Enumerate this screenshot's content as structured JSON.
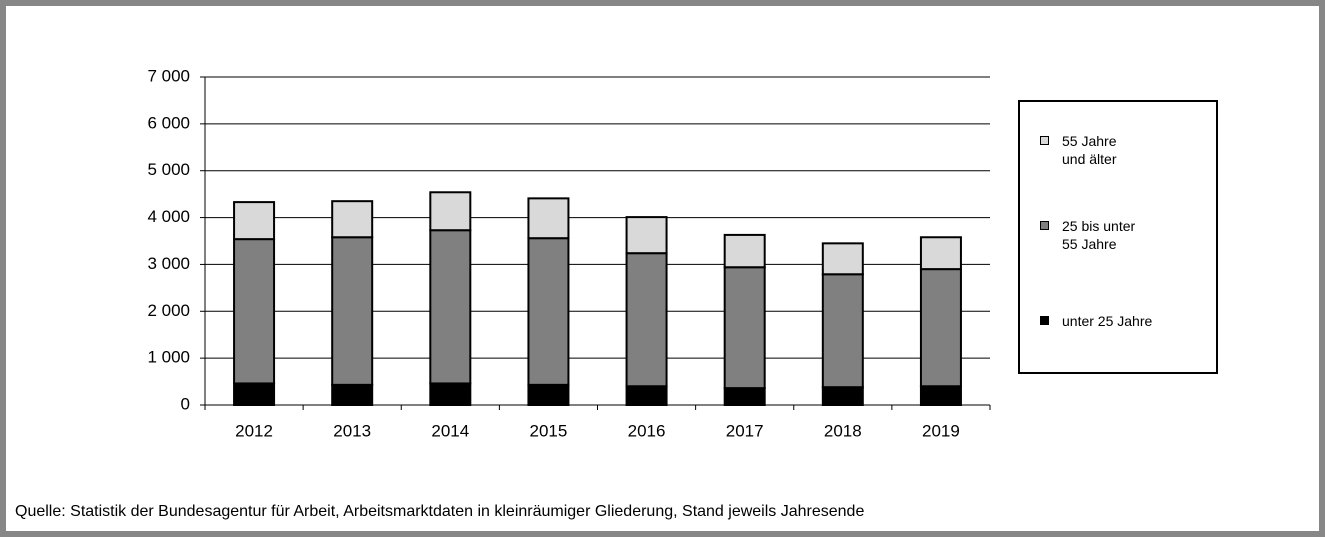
{
  "chart_data": {
    "type": "stacked_bar",
    "categories": [
      "2012",
      "2013",
      "2014",
      "2015",
      "2016",
      "2017",
      "2018",
      "2019"
    ],
    "series": [
      {
        "name": "unter 25 Jahre",
        "color": "#000000",
        "values": [
          460,
          430,
          460,
          430,
          400,
          360,
          380,
          400
        ]
      },
      {
        "name": "25 bis unter\n55 Jahre",
        "color": "#808080",
        "values": [
          3080,
          3150,
          3270,
          3130,
          2840,
          2580,
          2410,
          2500
        ]
      },
      {
        "name": "55 Jahre\nund älter",
        "color": "#d9d9d9",
        "values": [
          790,
          770,
          810,
          850,
          770,
          690,
          660,
          680
        ]
      }
    ],
    "ylim": [
      0,
      7000
    ],
    "yticks": [
      0,
      {
        "value": 1000,
        "label": "1 000"
      },
      {
        "value": 2000,
        "label": "2 000"
      },
      {
        "value": 3000,
        "label": "3 000"
      },
      {
        "value": 4000,
        "label": "4 000"
      },
      {
        "value": 5000,
        "label": "5 000"
      },
      {
        "value": 6000,
        "label": "6 000"
      },
      {
        "value": 7000,
        "label": "7 000"
      }
    ],
    "grid": true,
    "legend": "right",
    "source": "Quelle: Statistik der Bundesagentur für Arbeit, Arbeitsmarktdaten in kleinräumiger Gliederung, Stand jeweils Jahresende"
  }
}
